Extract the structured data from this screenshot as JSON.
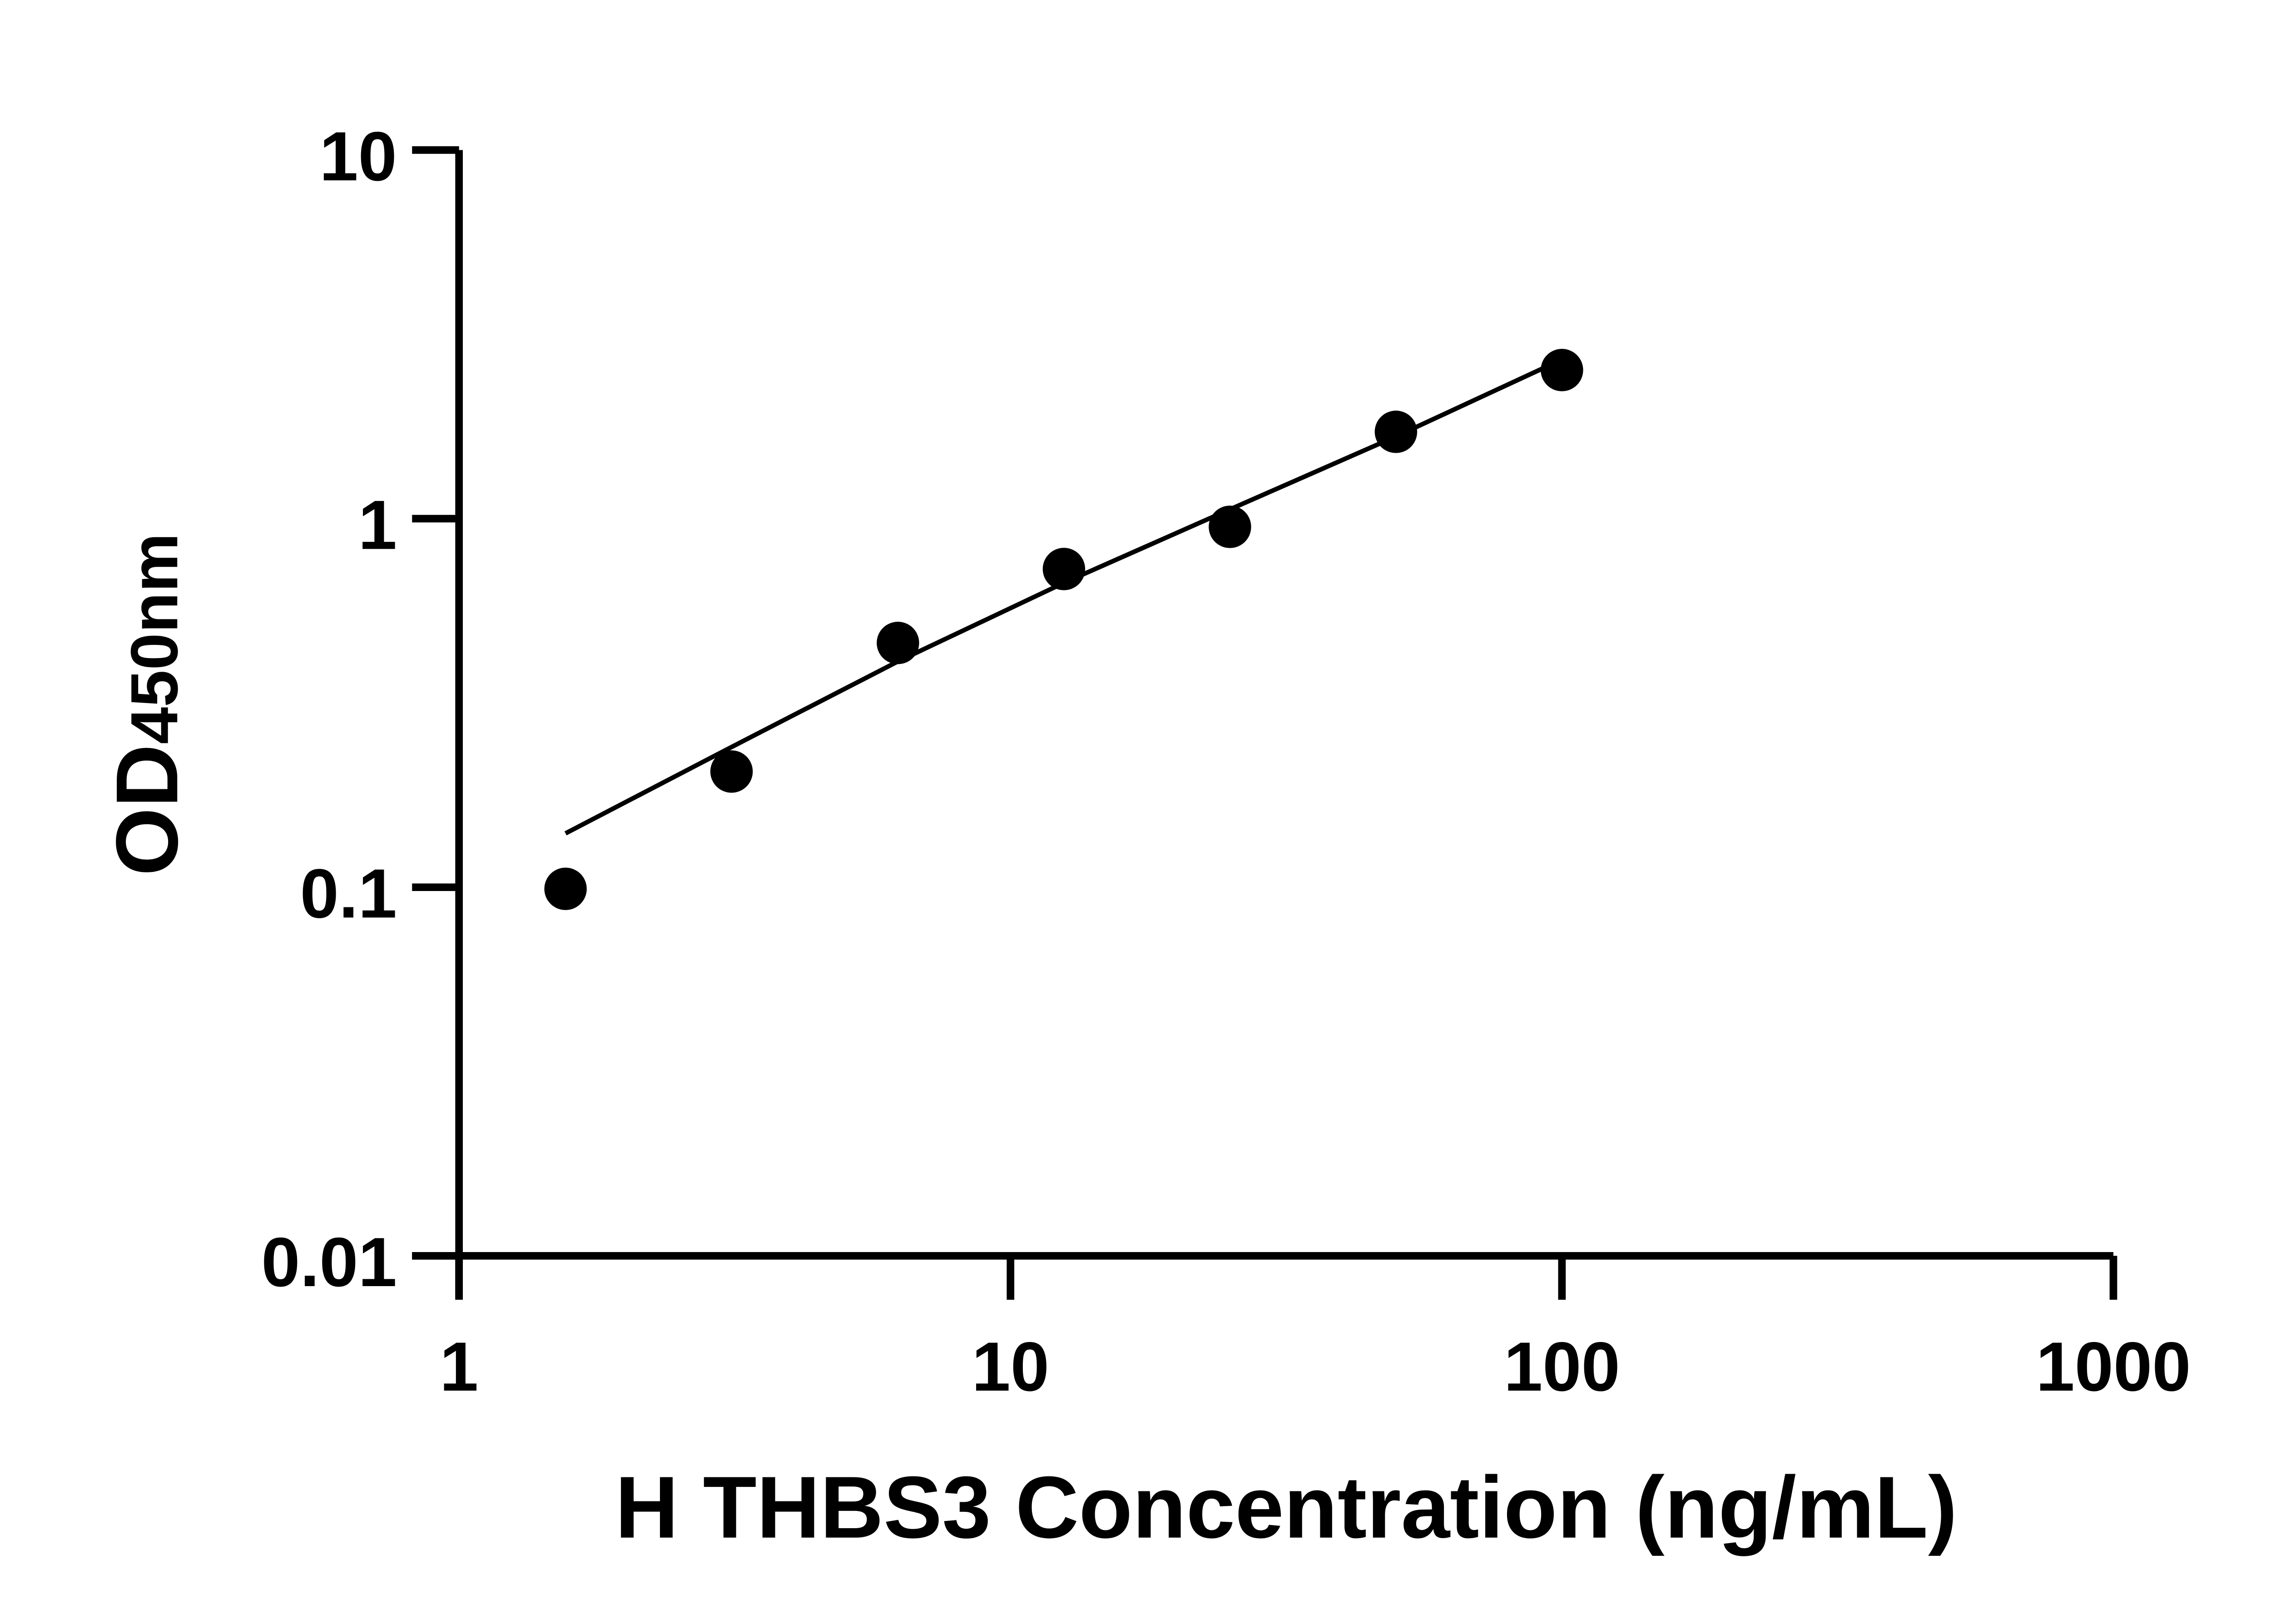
{
  "chart_data": {
    "type": "scatter",
    "title": "",
    "xlabel": "H THBS3 Concentration (ng/mL)",
    "ylabel_main": "OD",
    "ylabel_sub": "450nm",
    "x_scale": "log",
    "y_scale": "log",
    "xlim": [
      1,
      1000
    ],
    "ylim": [
      0.01,
      10
    ],
    "x_ticks": [
      "1",
      "10",
      "100",
      "1000"
    ],
    "x_tick_values": [
      1,
      10,
      100,
      1000
    ],
    "y_ticks": [
      "0.01",
      "0.1",
      "1",
      "10"
    ],
    "y_tick_values": [
      0.01,
      0.1,
      1,
      10
    ],
    "grid": false,
    "points": {
      "x": [
        1.56,
        3.12,
        6.25,
        12.5,
        25,
        50,
        100
      ],
      "y": [
        0.099,
        0.206,
        0.46,
        0.73,
        0.95,
        1.72,
        2.53
      ]
    },
    "fit_line": {
      "x": [
        1.56,
        3.12,
        6.25,
        12.5,
        25,
        50,
        92
      ],
      "y": [
        0.14,
        0.24,
        0.41,
        0.67,
        1.06,
        1.67,
        2.55
      ]
    },
    "colors": {
      "points": "#000000",
      "line": "#000000",
      "axes": "#000000"
    }
  }
}
